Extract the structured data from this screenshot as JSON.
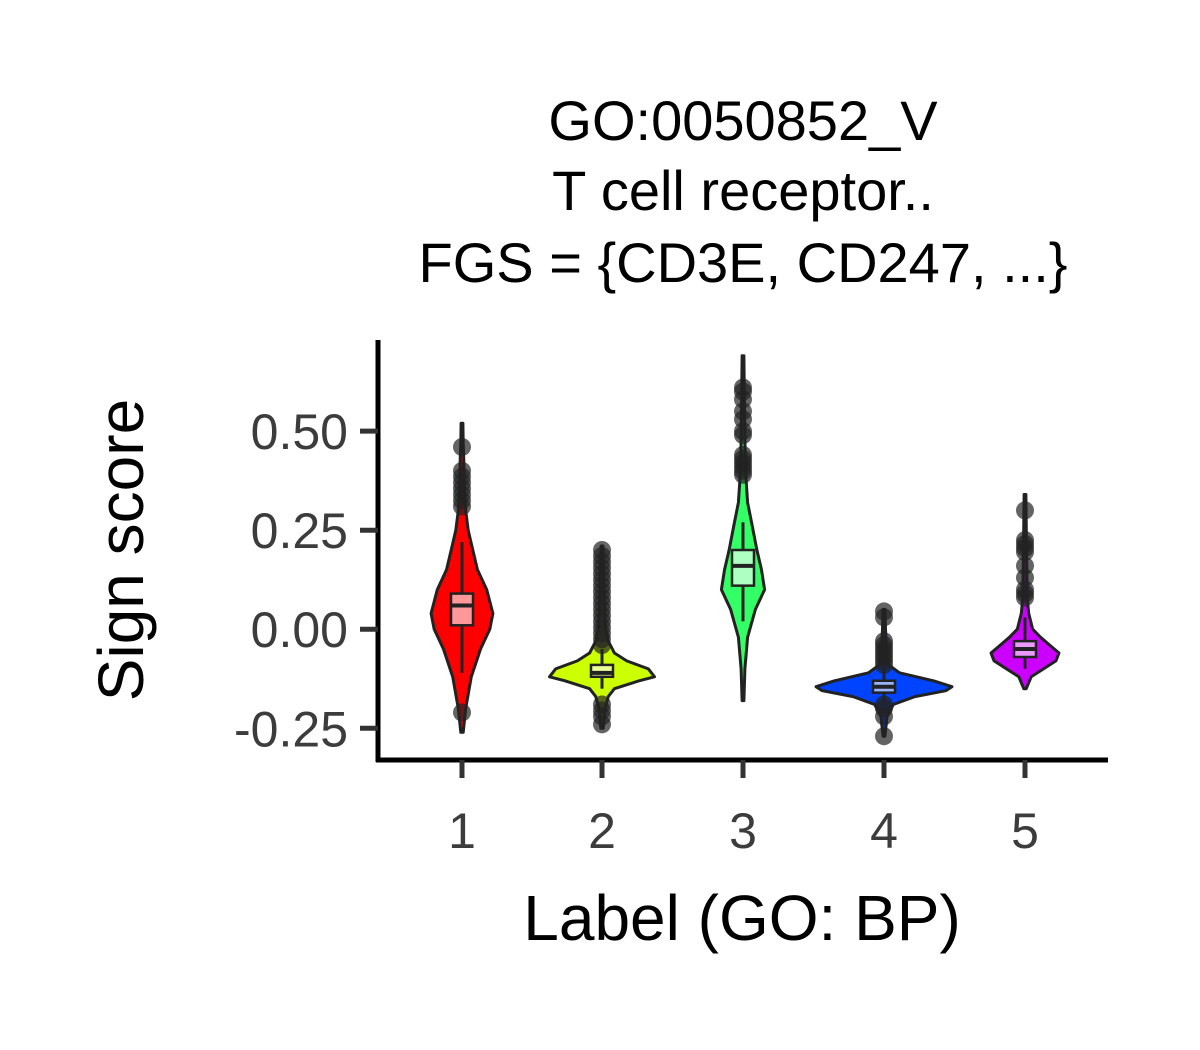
{
  "chart_data": {
    "type": "violin",
    "title": [
      "GO:0050852_V",
      "T cell receptor..",
      "FGS = {CD3E, CD247, ...}"
    ],
    "xlabel": "Label (GO: BP)",
    "ylabel": "Sign score",
    "ylim": [
      -0.33,
      0.73
    ],
    "yticks": [
      -0.25,
      0.0,
      0.25,
      0.5
    ],
    "ytick_labels": [
      "-0.25",
      "0.00",
      "0.25",
      "0.50"
    ],
    "categories": [
      "1",
      "2",
      "3",
      "4",
      "5"
    ],
    "grid": false,
    "legend": "none",
    "series": [
      {
        "category": "1",
        "fill": "#ff0000",
        "box_fill": "#ff9999",
        "min": -0.26,
        "max": 0.52,
        "q1": 0.01,
        "median": 0.06,
        "q3": 0.09,
        "whisker_low": -0.11,
        "whisker_high": 0.22,
        "density": [
          [
            -0.26,
            0.004
          ],
          [
            -0.2,
            0.012
          ],
          [
            -0.12,
            0.03
          ],
          [
            -0.05,
            0.06
          ],
          [
            0.0,
            0.09
          ],
          [
            0.04,
            0.1
          ],
          [
            0.1,
            0.08
          ],
          [
            0.15,
            0.05
          ],
          [
            0.2,
            0.035
          ],
          [
            0.25,
            0.02
          ],
          [
            0.3,
            0.012
          ],
          [
            0.36,
            0.007
          ],
          [
            0.42,
            0.006
          ],
          [
            0.47,
            0.004
          ],
          [
            0.52,
            0.003
          ]
        ],
        "outliers": [
          0.46,
          0.4,
          0.385,
          0.37,
          0.355,
          0.34,
          0.325,
          0.31,
          -0.21
        ]
      },
      {
        "category": "2",
        "fill": "#ccff00",
        "box_fill": "#ebff99",
        "min": -0.25,
        "max": 0.21,
        "q1": -0.12,
        "median": -0.11,
        "q3": -0.09,
        "whisker_low": -0.15,
        "whisker_high": -0.05,
        "density": [
          [
            -0.25,
            0.004
          ],
          [
            -0.2,
            0.01
          ],
          [
            -0.17,
            0.02
          ],
          [
            -0.15,
            0.04
          ],
          [
            -0.13,
            0.12
          ],
          [
            -0.12,
            0.17
          ],
          [
            -0.1,
            0.15
          ],
          [
            -0.08,
            0.08
          ],
          [
            -0.06,
            0.04
          ],
          [
            -0.03,
            0.02
          ],
          [
            0.0,
            0.012
          ],
          [
            0.05,
            0.008
          ],
          [
            0.1,
            0.006
          ],
          [
            0.15,
            0.005
          ],
          [
            0.21,
            0.003
          ]
        ],
        "outliers": [
          0.2,
          0.185,
          0.17,
          0.155,
          0.14,
          0.125,
          0.11,
          0.095,
          0.08,
          0.065,
          0.05,
          0.035,
          0.02,
          0.005,
          -0.01,
          -0.025,
          -0.04,
          -0.19,
          -0.205,
          -0.22,
          -0.24
        ]
      },
      {
        "category": "3",
        "fill": "#33ff66",
        "box_fill": "#adffc2",
        "min": -0.18,
        "max": 0.69,
        "q1": 0.11,
        "median": 0.16,
        "q3": 0.2,
        "whisker_low": 0.02,
        "whisker_high": 0.27,
        "density": [
          [
            -0.18,
            0.003
          ],
          [
            -0.1,
            0.006
          ],
          [
            -0.02,
            0.015
          ],
          [
            0.05,
            0.04
          ],
          [
            0.1,
            0.07
          ],
          [
            0.15,
            0.06
          ],
          [
            0.2,
            0.045
          ],
          [
            0.26,
            0.03
          ],
          [
            0.32,
            0.015
          ],
          [
            0.4,
            0.008
          ],
          [
            0.48,
            0.006
          ],
          [
            0.55,
            0.005
          ],
          [
            0.62,
            0.004
          ],
          [
            0.69,
            0.003
          ]
        ],
        "outliers": [
          0.61,
          0.6,
          0.58,
          0.55,
          0.53,
          0.5,
          0.49,
          0.44,
          0.43,
          0.42,
          0.41,
          0.4,
          0.39
        ]
      },
      {
        "category": "4",
        "fill": "#0044ff",
        "box_fill": "#99b4ff",
        "min": -0.27,
        "max": 0.05,
        "q1": -0.16,
        "median": -0.145,
        "q3": -0.13,
        "whisker_low": -0.18,
        "whisker_high": -0.1,
        "density": [
          [
            -0.27,
            0.003
          ],
          [
            -0.22,
            0.01
          ],
          [
            -0.19,
            0.03
          ],
          [
            -0.17,
            0.1
          ],
          [
            -0.155,
            0.2
          ],
          [
            -0.145,
            0.22
          ],
          [
            -0.13,
            0.16
          ],
          [
            -0.11,
            0.05
          ],
          [
            -0.09,
            0.015
          ],
          [
            -0.05,
            0.008
          ],
          [
            0.0,
            0.005
          ],
          [
            0.05,
            0.003
          ]
        ],
        "outliers": [
          0.045,
          0.03,
          -0.03,
          -0.04,
          -0.05,
          -0.06,
          -0.07,
          -0.08,
          -0.09,
          -0.19,
          -0.2,
          -0.22,
          -0.27
        ]
      },
      {
        "category": "5",
        "fill": "#cc00ff",
        "box_fill": "#ea99ff",
        "min": -0.15,
        "max": 0.34,
        "q1": -0.07,
        "median": -0.05,
        "q3": -0.03,
        "whisker_low": -0.1,
        "whisker_high": 0.03,
        "density": [
          [
            -0.15,
            0.004
          ],
          [
            -0.12,
            0.02
          ],
          [
            -0.1,
            0.06
          ],
          [
            -0.08,
            0.1
          ],
          [
            -0.06,
            0.11
          ],
          [
            -0.04,
            0.08
          ],
          [
            -0.02,
            0.05
          ],
          [
            0.0,
            0.025
          ],
          [
            0.04,
            0.012
          ],
          [
            0.08,
            0.007
          ],
          [
            0.14,
            0.006
          ],
          [
            0.2,
            0.005
          ],
          [
            0.27,
            0.004
          ],
          [
            0.34,
            0.003
          ]
        ],
        "outliers": [
          0.3,
          0.225,
          0.215,
          0.205,
          0.195,
          0.16,
          0.13,
          0.1,
          0.09,
          0.08
        ]
      }
    ]
  }
}
